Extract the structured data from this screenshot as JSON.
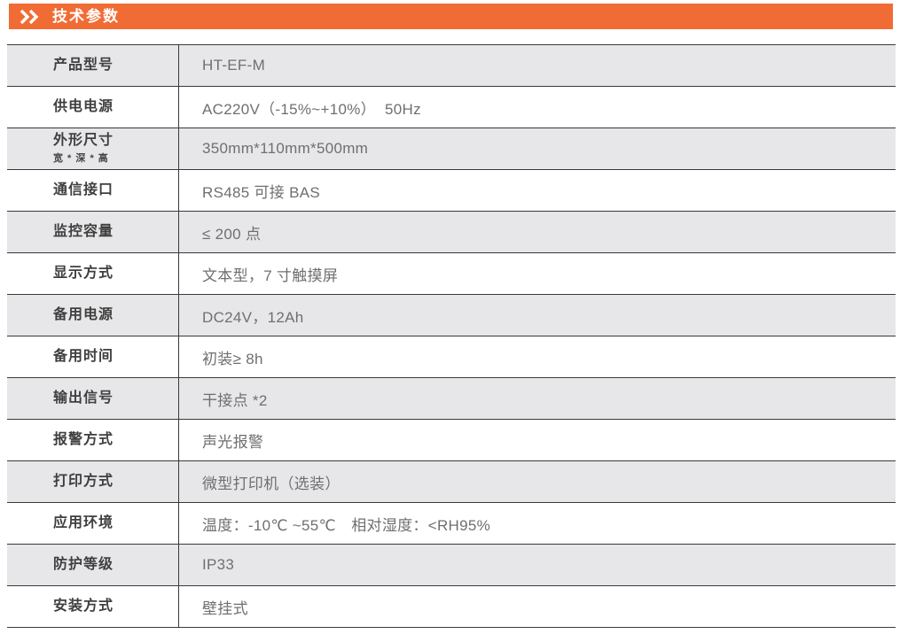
{
  "header": {
    "title": "技术参数",
    "icon": "double-chevron-right-icon",
    "accent_color": "#f16c34"
  },
  "table": {
    "colors": {
      "alt_row_bg": "#e7e7e9",
      "line": "#39393b",
      "label_text": "#3f3f3f",
      "value_text": "#6f6f6f"
    },
    "rows": [
      {
        "label": "产品型号",
        "value": "HT-EF-M"
      },
      {
        "label": "供电电源",
        "value": "AC220V（-15%~+10%）  50Hz"
      },
      {
        "label": "外形尺寸",
        "sublabel": "宽 * 深 * 高",
        "value": "350mm*110mm*500mm"
      },
      {
        "label": "通信接口",
        "value": "RS485 可接 BAS"
      },
      {
        "label": "监控容量",
        "value": "≤ 200 点"
      },
      {
        "label": "显示方式",
        "value": "文本型，7 寸触摸屏"
      },
      {
        "label": "备用电源",
        "value": "DC24V，12Ah"
      },
      {
        "label": "备用时间",
        "value": "初装≥ 8h"
      },
      {
        "label": "输出信号",
        "value": "干接点 *2"
      },
      {
        "label": "报警方式",
        "value": "声光报警"
      },
      {
        "label": "打印方式",
        "value": "微型打印机（选装）"
      },
      {
        "label": "应用环境",
        "value": "温度：-10℃ ~55℃　相对湿度：<RH95%"
      },
      {
        "label": "防护等级",
        "value": "IP33"
      },
      {
        "label": "安装方式",
        "value": "壁挂式"
      }
    ]
  }
}
